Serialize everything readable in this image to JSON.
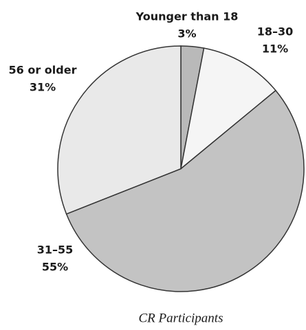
{
  "chart_data": {
    "type": "pie",
    "title": "CR Participants",
    "categories": [
      "Younger than 18",
      "18–30",
      "31–55",
      "56 or older"
    ],
    "values": [
      3,
      11,
      55,
      31
    ],
    "value_labels": [
      "3%",
      "11%",
      "55%",
      "31%"
    ],
    "colors": [
      "#b9b9b9",
      "#f5f5f5",
      "#c3c3c3",
      "#e9e9e9"
    ]
  }
}
